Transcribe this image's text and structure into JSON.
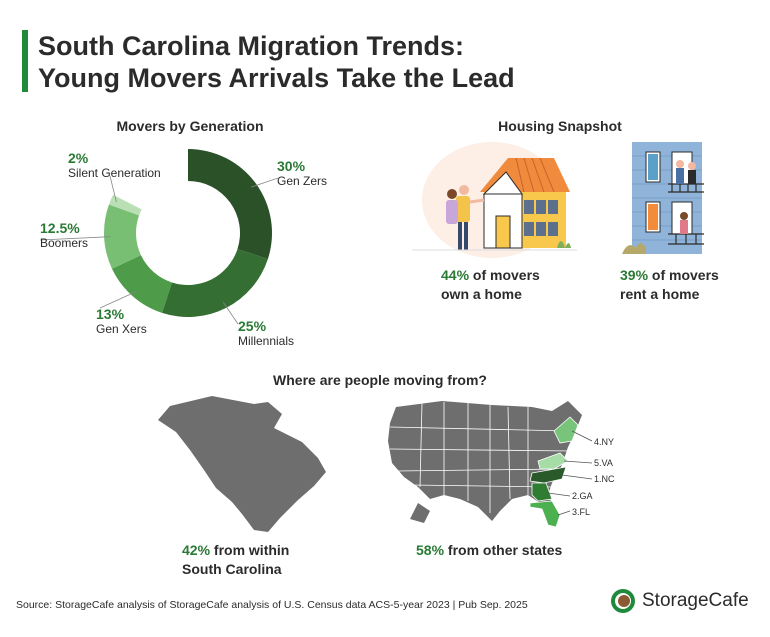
{
  "title_line1": "South Carolina Migration Trends:",
  "title_line2": "Young Movers Arrivals Take the Lead",
  "generation": {
    "title": "Movers by Generation",
    "labels": [
      {
        "pct": "30%",
        "name": "Gen Zers"
      },
      {
        "pct": "25%",
        "name": "Millennials"
      },
      {
        "pct": "13%",
        "name": "Gen Xers"
      },
      {
        "pct": "12.5%",
        "name": "Boomers"
      },
      {
        "pct": "2%",
        "name": "Silent Generation"
      }
    ]
  },
  "housing": {
    "title": "Housing Snapshot",
    "own_pct": "44%",
    "own_text": "of movers",
    "own_text2": "own a home",
    "rent_pct": "39%",
    "rent_text": "of movers",
    "rent_text2": "rent a home"
  },
  "moving_from": {
    "title": "Where are people moving from?",
    "within_pct": "42%",
    "within_text": "from within",
    "within_text2": "South Carolina",
    "other_pct": "58%",
    "other_text": "from other states",
    "states": [
      {
        "label": "4.NY",
        "color": "#79c47b"
      },
      {
        "label": "5.VA",
        "color": "#a6dca6"
      },
      {
        "label": "1.NC",
        "color": "#2a5a2a"
      },
      {
        "label": "2.GA",
        "color": "#2e7d32"
      },
      {
        "label": "3.FL",
        "color": "#4caf50"
      }
    ]
  },
  "source": "Source: StorageCafe analysis of StorageCafe analysis of U.S. Census data ACS-5-year 2023 | Pub Sep. 2025",
  "brand": "StorageCafe",
  "chart_data": [
    {
      "type": "pie",
      "title": "Movers by Generation",
      "categories": [
        "Gen Zers",
        "Millennials",
        "Gen Xers",
        "Boomers",
        "Silent Generation"
      ],
      "values": [
        30,
        25,
        13,
        12.5,
        2
      ],
      "colors": [
        "#2a5128",
        "#356e32",
        "#4e9b4a",
        "#78bf74",
        "#b8e0b4"
      ]
    },
    {
      "type": "bar",
      "title": "Housing Snapshot",
      "categories": [
        "own a home",
        "rent a home"
      ],
      "values": [
        44,
        39
      ]
    },
    {
      "type": "pie",
      "title": "Where are people moving from?",
      "categories": [
        "from within South Carolina",
        "from other states"
      ],
      "values": [
        42,
        58
      ]
    }
  ]
}
